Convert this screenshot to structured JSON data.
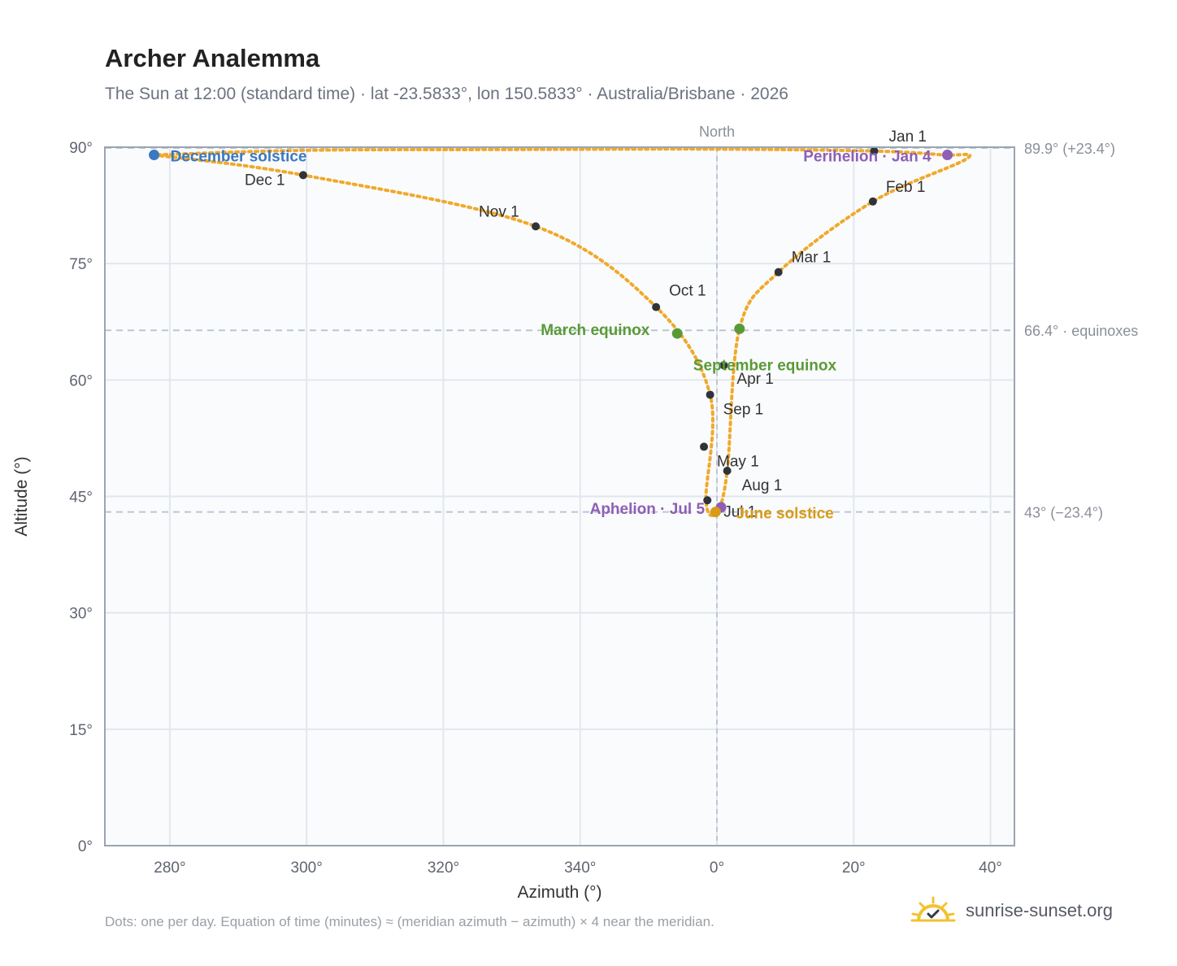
{
  "header": {
    "title": "Archer Analemma",
    "subtitle": "The Sun at 12:00 (standard time) · lat -23.5833°, lon 150.5833° · Australia/Brisbane · 2026"
  },
  "footer": {
    "note": "Dots: one per day. Equation of time (minutes) ≈ (meridian azimuth − azimuth) × 4 near the meridian.",
    "brand": "sunrise-sunset.org"
  },
  "chart_data": {
    "type": "scatter",
    "title": "Archer Analemma",
    "xlabel": "Azimuth (°)",
    "ylabel": "Altitude (°)",
    "xlim": [
      -89.5,
      43.5
    ],
    "ylim": [
      0,
      90
    ],
    "x_ticks": [
      {
        "value": -80,
        "label": "280°"
      },
      {
        "value": -60,
        "label": "300°"
      },
      {
        "value": -40,
        "label": "320°"
      },
      {
        "value": -20,
        "label": "340°"
      },
      {
        "value": 0,
        "label": "0°"
      },
      {
        "value": 20,
        "label": "20°"
      },
      {
        "value": 40,
        "label": "40°"
      }
    ],
    "y_ticks": [
      {
        "value": 0,
        "label": "0°"
      },
      {
        "value": 15,
        "label": "15°"
      },
      {
        "value": 30,
        "label": "30°"
      },
      {
        "value": 45,
        "label": "45°"
      },
      {
        "value": 60,
        "label": "60°"
      },
      {
        "value": 75,
        "label": "75°"
      },
      {
        "value": 90,
        "label": "90°"
      }
    ],
    "grid": true,
    "meridian": {
      "x": 0,
      "label": "North"
    },
    "reference_lines": [
      {
        "y": 89.9,
        "label": "89.9° (+23.4°)"
      },
      {
        "y": 66.4,
        "label": "66.4° · equinoxes"
      },
      {
        "y": 43,
        "label": "43° (−23.4°)"
      }
    ],
    "path_anchors": [
      {
        "x": -82.3,
        "y": 89.0
      },
      {
        "x": -60.5,
        "y": 86.4
      },
      {
        "x": -26.5,
        "y": 79.8
      },
      {
        "x": -8.9,
        "y": 69.4
      },
      {
        "x": -1.0,
        "y": 58.1
      },
      {
        "x": -1.6,
        "y": 44.5
      },
      {
        "x": 0.0,
        "y": 43.0
      },
      {
        "x": 1.5,
        "y": 48.3
      },
      {
        "x": 3.3,
        "y": 66.6
      },
      {
        "x": 9.0,
        "y": 73.9
      },
      {
        "x": 22.8,
        "y": 83.0
      },
      {
        "x": 36.5,
        "y": 88.5
      },
      {
        "x": 33.0,
        "y": 89.0
      },
      {
        "x": 23.0,
        "y": 89.5
      },
      {
        "x": 0,
        "y": 89.75
      },
      {
        "x": -30,
        "y": 89.7
      },
      {
        "x": -60,
        "y": 89.6
      },
      {
        "x": -82.3,
        "y": 89.0
      }
    ],
    "month_markers": [
      {
        "label": "Jan 1",
        "x": 23.0,
        "y": 89.5
      },
      {
        "label": "Feb 1",
        "x": 22.8,
        "y": 83.0
      },
      {
        "label": "Mar 1",
        "x": 9.0,
        "y": 73.9
      },
      {
        "label": "Apr 1",
        "x": 1.0,
        "y": 61.9
      },
      {
        "label": "May 1",
        "x": -1.9,
        "y": 51.4
      },
      {
        "label": "Jul 1",
        "x": -1.4,
        "y": 44.5
      },
      {
        "label": "Aug 1",
        "x": 1.5,
        "y": 48.3
      },
      {
        "label": "Sep 1",
        "x": -1.0,
        "y": 58.1
      },
      {
        "label": "Oct 1",
        "x": -8.9,
        "y": 69.4
      },
      {
        "label": "Nov 1",
        "x": -26.5,
        "y": 79.8
      },
      {
        "label": "Dec 1",
        "x": -60.5,
        "y": 86.4
      }
    ],
    "events": [
      {
        "label": "December solstice",
        "x": -82.3,
        "y": 89.0,
        "color": "#3b78c0"
      },
      {
        "label": "Perihelion · Jan 4",
        "x": 33.7,
        "y": 89.0,
        "color": "#8e5fb5"
      },
      {
        "label": "March equinox",
        "x": -5.8,
        "y": 66.0,
        "color": "#5a9a36"
      },
      {
        "label": "September equinox",
        "x": 3.3,
        "y": 66.6,
        "color": "#5a9a36"
      },
      {
        "label": "Aphelion · Jul 5",
        "x": 0.6,
        "y": 43.6,
        "color": "#8e5fb5"
      },
      {
        "label": "June solstice",
        "x": -0.2,
        "y": 43.0,
        "color": "#d99a16"
      }
    ],
    "colors": {
      "path": "#f0a92a",
      "marker": "#2f333a",
      "grid": "#e3e7ed",
      "plot_bg": "#fafbfd",
      "frame": "#9aa5b4",
      "ref_line": "#bcc6d2"
    }
  }
}
